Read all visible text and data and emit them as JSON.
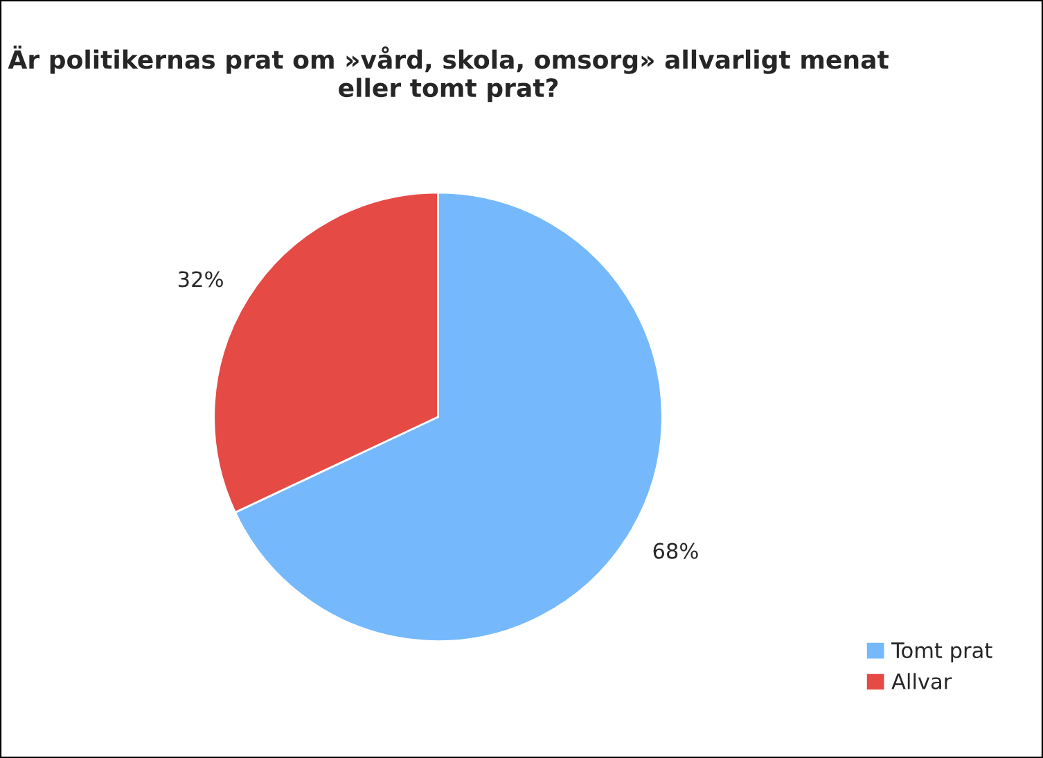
{
  "chart_data": {
    "type": "pie",
    "title": "Är politikernas prat om »vård, skola, omsorg» allvarligt menat eller tomt prat?",
    "categories": [
      "Tomt prat",
      "Allvar"
    ],
    "values": [
      68,
      32
    ],
    "colors": [
      "#75b9fc",
      "#e64a45"
    ],
    "value_labels": [
      "68%",
      "32%"
    ],
    "legend": "bottom right"
  }
}
